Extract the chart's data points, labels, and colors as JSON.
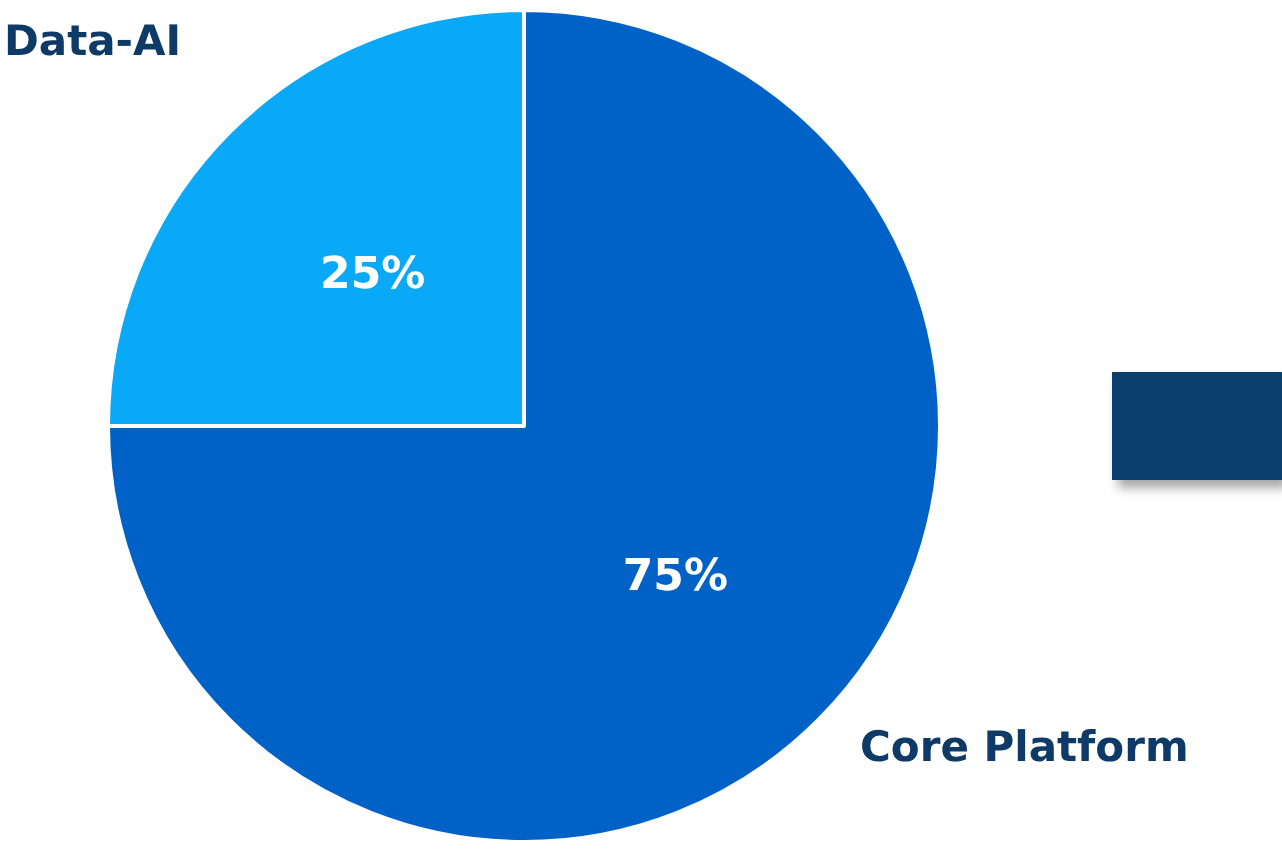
{
  "chart_data": {
    "type": "pie",
    "categories": [
      "Data-AI",
      "Core Platform"
    ],
    "values": [
      25,
      75
    ],
    "colors": [
      "#0aa9f7",
      "#0062c6"
    ],
    "value_labels": [
      "25%",
      "75%"
    ]
  }
}
